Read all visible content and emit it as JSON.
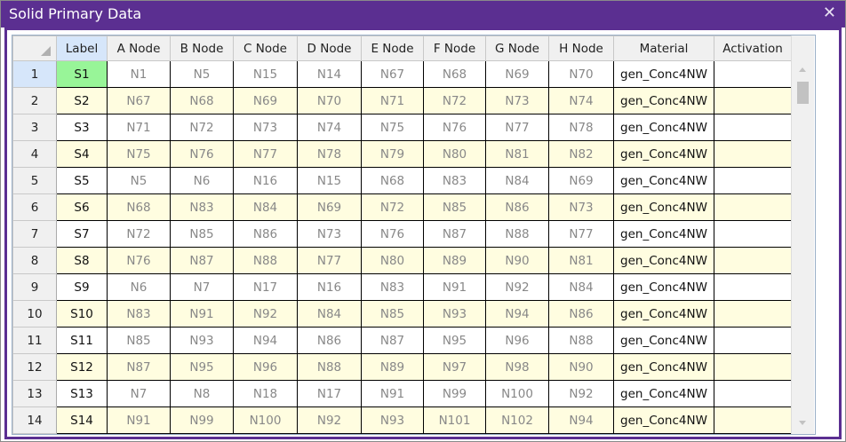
{
  "window": {
    "title": "Solid Primary Data",
    "close_icon": "close-icon"
  },
  "colors": {
    "titlebar": "#5b2f91",
    "selected_label": "#98f598",
    "alt_row": "#fffde0",
    "header_selected": "#d6e6fa"
  },
  "grid": {
    "columns": [
      "",
      "Label",
      "A Node",
      "B Node",
      "C Node",
      "D Node",
      "E Node",
      "F Node",
      "G Node",
      "H Node",
      "Material",
      "Activation"
    ],
    "selected_row": 1,
    "rows": [
      {
        "num": "1",
        "label": "S1",
        "nodes": [
          "N1",
          "N5",
          "N15",
          "N14",
          "N67",
          "N68",
          "N69",
          "N70"
        ],
        "material": "gen_Conc4NW",
        "activation": ""
      },
      {
        "num": "2",
        "label": "S2",
        "nodes": [
          "N67",
          "N68",
          "N69",
          "N70",
          "N71",
          "N72",
          "N73",
          "N74"
        ],
        "material": "gen_Conc4NW",
        "activation": ""
      },
      {
        "num": "3",
        "label": "S3",
        "nodes": [
          "N71",
          "N72",
          "N73",
          "N74",
          "N75",
          "N76",
          "N77",
          "N78"
        ],
        "material": "gen_Conc4NW",
        "activation": ""
      },
      {
        "num": "4",
        "label": "S4",
        "nodes": [
          "N75",
          "N76",
          "N77",
          "N78",
          "N79",
          "N80",
          "N81",
          "N82"
        ],
        "material": "gen_Conc4NW",
        "activation": ""
      },
      {
        "num": "5",
        "label": "S5",
        "nodes": [
          "N5",
          "N6",
          "N16",
          "N15",
          "N68",
          "N83",
          "N84",
          "N69"
        ],
        "material": "gen_Conc4NW",
        "activation": ""
      },
      {
        "num": "6",
        "label": "S6",
        "nodes": [
          "N68",
          "N83",
          "N84",
          "N69",
          "N72",
          "N85",
          "N86",
          "N73"
        ],
        "material": "gen_Conc4NW",
        "activation": ""
      },
      {
        "num": "7",
        "label": "S7",
        "nodes": [
          "N72",
          "N85",
          "N86",
          "N73",
          "N76",
          "N87",
          "N88",
          "N77"
        ],
        "material": "gen_Conc4NW",
        "activation": ""
      },
      {
        "num": "8",
        "label": "S8",
        "nodes": [
          "N76",
          "N87",
          "N88",
          "N77",
          "N80",
          "N89",
          "N90",
          "N81"
        ],
        "material": "gen_Conc4NW",
        "activation": ""
      },
      {
        "num": "9",
        "label": "S9",
        "nodes": [
          "N6",
          "N7",
          "N17",
          "N16",
          "N83",
          "N91",
          "N92",
          "N84"
        ],
        "material": "gen_Conc4NW",
        "activation": ""
      },
      {
        "num": "10",
        "label": "S10",
        "nodes": [
          "N83",
          "N91",
          "N92",
          "N84",
          "N85",
          "N93",
          "N94",
          "N86"
        ],
        "material": "gen_Conc4NW",
        "activation": ""
      },
      {
        "num": "11",
        "label": "S11",
        "nodes": [
          "N85",
          "N93",
          "N94",
          "N86",
          "N87",
          "N95",
          "N96",
          "N88"
        ],
        "material": "gen_Conc4NW",
        "activation": ""
      },
      {
        "num": "12",
        "label": "S12",
        "nodes": [
          "N87",
          "N95",
          "N96",
          "N88",
          "N89",
          "N97",
          "N98",
          "N90"
        ],
        "material": "gen_Conc4NW",
        "activation": ""
      },
      {
        "num": "13",
        "label": "S13",
        "nodes": [
          "N7",
          "N8",
          "N18",
          "N17",
          "N91",
          "N99",
          "N100",
          "N92"
        ],
        "material": "gen_Conc4NW",
        "activation": ""
      },
      {
        "num": "14",
        "label": "S14",
        "nodes": [
          "N91",
          "N99",
          "N100",
          "N92",
          "N93",
          "N101",
          "N102",
          "N94"
        ],
        "material": "gen_Conc4NW",
        "activation": ""
      }
    ]
  }
}
